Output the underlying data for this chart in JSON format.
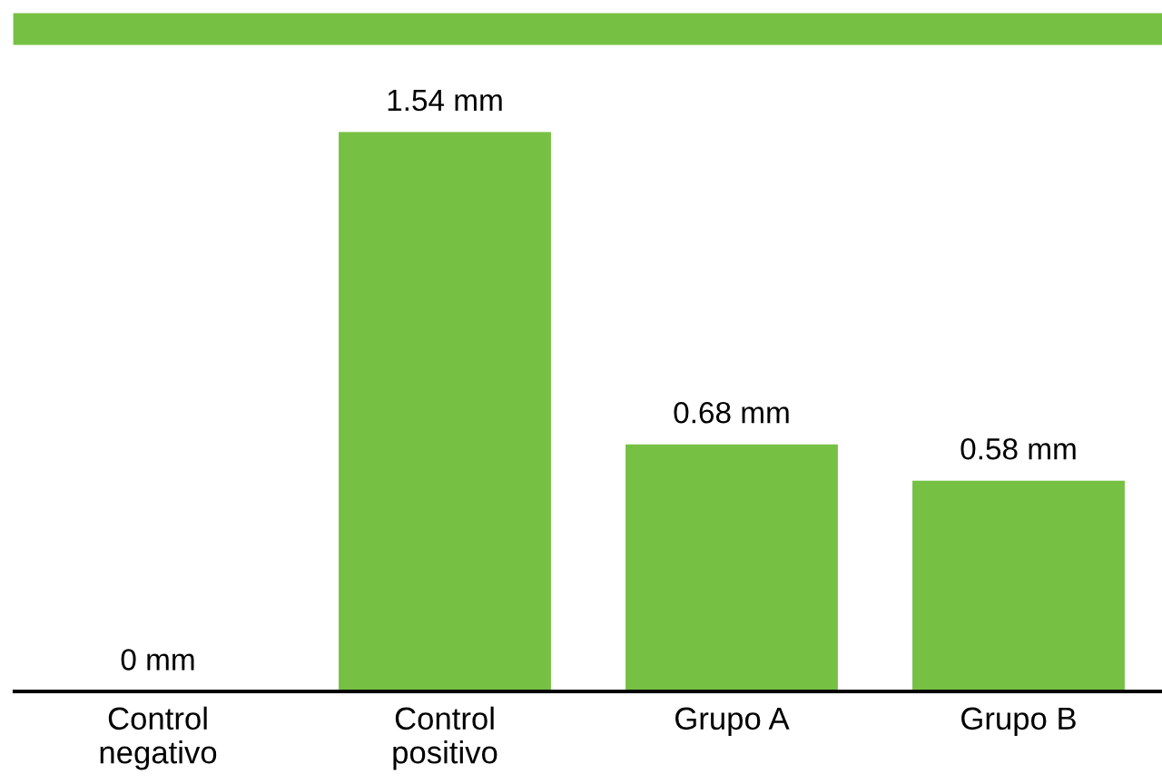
{
  "chart_data": {
    "type": "bar",
    "categories": [
      "Control\nnegativo",
      "Control\npositivo",
      "Grupo A",
      "Grupo B"
    ],
    "values": [
      0,
      1.54,
      0.68,
      0.58
    ],
    "value_labels": [
      "0 mm",
      "1.54 mm",
      "0.68 mm",
      "0.58 mm"
    ],
    "color": "#76c043",
    "grid": false,
    "legend": false
  }
}
